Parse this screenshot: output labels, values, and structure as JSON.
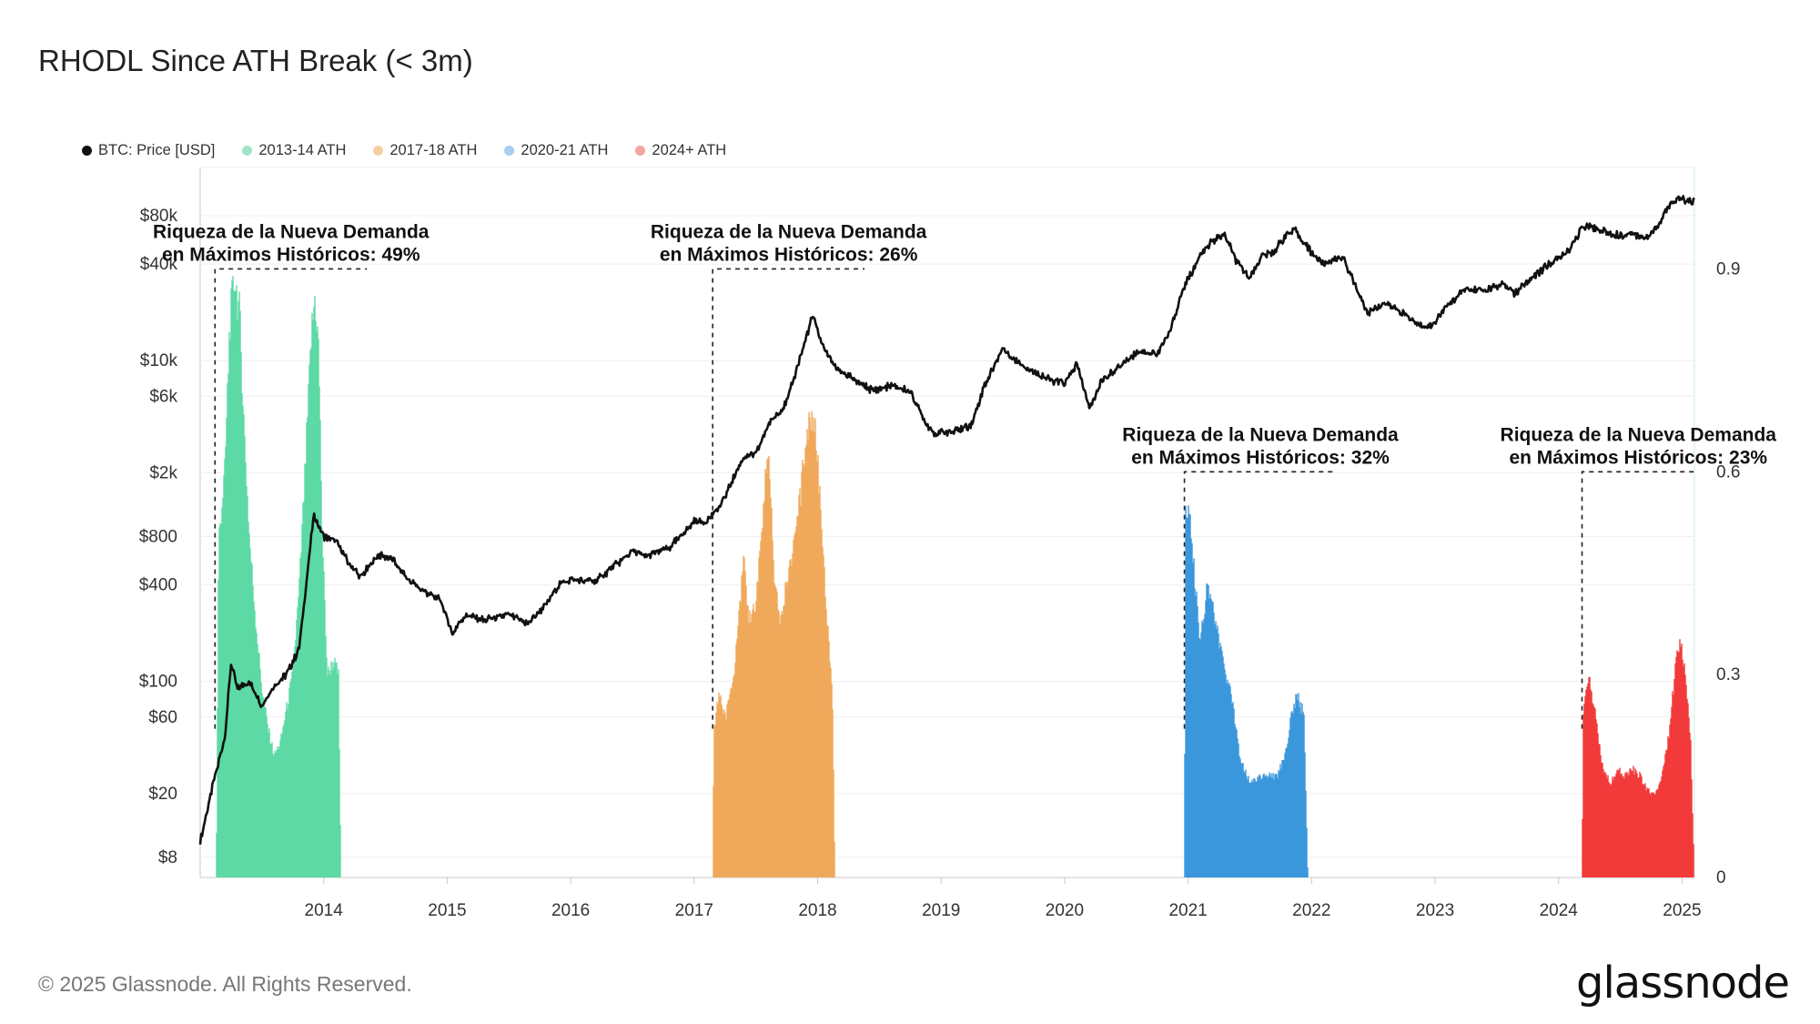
{
  "title": "RHODL Since ATH Break (< 3m)",
  "footer": "© 2025 Glassnode. All Rights Reserved.",
  "brand": "glassnode",
  "legend": [
    {
      "label": "BTC: Price [USD]",
      "color": "#111111"
    },
    {
      "label": "2013-14 ATH",
      "color": "#9fe6c6"
    },
    {
      "label": "2017-18 ATH",
      "color": "#f7cf9e"
    },
    {
      "label": "2020-21 ATH",
      "color": "#a9cdef"
    },
    {
      "label": "2024+ ATH",
      "color": "#f5a3a3"
    }
  ],
  "chart_data": {
    "type": "area",
    "title": "RHODL Since ATH Break (< 3m)",
    "x_ticks": [
      "2014",
      "2015",
      "2016",
      "2017",
      "2018",
      "2019",
      "2020",
      "2021",
      "2022",
      "2023",
      "2024",
      "2025"
    ],
    "x_range": [
      2013.0,
      2025.1
    ],
    "y_left": {
      "scale": "log",
      "range": [
        6,
        160000
      ],
      "ticks": [
        8,
        20,
        60,
        100,
        400,
        800,
        2000,
        6000,
        10000,
        40000,
        80000
      ],
      "tick_labels": [
        "$8",
        "$20",
        "$60",
        "$100",
        "$400",
        "$800",
        "$2k",
        "$6k",
        "$10k",
        "$40k",
        "$80k"
      ]
    },
    "y_right": {
      "range": [
        0,
        1.05
      ],
      "ticks": [
        0,
        0.3,
        0.6,
        0.9
      ],
      "tick_labels": [
        "0",
        "0.3",
        "0.6",
        "0.9"
      ]
    },
    "price_series": {
      "name": "BTC: Price [USD]",
      "color": "#111111",
      "points": [
        [
          2013.0,
          10
        ],
        [
          2013.1,
          22
        ],
        [
          2013.2,
          45
        ],
        [
          2013.25,
          130
        ],
        [
          2013.3,
          90
        ],
        [
          2013.4,
          100
        ],
        [
          2013.5,
          70
        ],
        [
          2013.6,
          95
        ],
        [
          2013.7,
          110
        ],
        [
          2013.8,
          160
        ],
        [
          2013.85,
          350
        ],
        [
          2013.92,
          1100
        ],
        [
          2014.0,
          800
        ],
        [
          2014.1,
          750
        ],
        [
          2014.2,
          550
        ],
        [
          2014.3,
          450
        ],
        [
          2014.45,
          620
        ],
        [
          2014.55,
          580
        ],
        [
          2014.7,
          420
        ],
        [
          2014.85,
          350
        ],
        [
          2014.95,
          320
        ],
        [
          2015.04,
          200
        ],
        [
          2015.15,
          260
        ],
        [
          2015.3,
          240
        ],
        [
          2015.5,
          260
        ],
        [
          2015.65,
          230
        ],
        [
          2015.8,
          300
        ],
        [
          2015.9,
          400
        ],
        [
          2016.0,
          430
        ],
        [
          2016.2,
          420
        ],
        [
          2016.4,
          560
        ],
        [
          2016.5,
          650
        ],
        [
          2016.6,
          600
        ],
        [
          2016.8,
          680
        ],
        [
          2016.95,
          900
        ],
        [
          2017.0,
          1000
        ],
        [
          2017.1,
          1000
        ],
        [
          2017.2,
          1200
        ],
        [
          2017.4,
          2500
        ],
        [
          2017.5,
          2600
        ],
        [
          2017.6,
          4000
        ],
        [
          2017.75,
          5500
        ],
        [
          2017.85,
          10000
        ],
        [
          2017.96,
          19000
        ],
        [
          2018.05,
          12000
        ],
        [
          2018.15,
          9000
        ],
        [
          2018.3,
          7500
        ],
        [
          2018.45,
          6500
        ],
        [
          2018.6,
          7000
        ],
        [
          2018.75,
          6400
        ],
        [
          2018.88,
          4000
        ],
        [
          2018.96,
          3500
        ],
        [
          2019.1,
          3600
        ],
        [
          2019.25,
          4000
        ],
        [
          2019.35,
          7000
        ],
        [
          2019.5,
          12000
        ],
        [
          2019.6,
          10000
        ],
        [
          2019.75,
          8500
        ],
        [
          2019.9,
          7500
        ],
        [
          2020.0,
          7200
        ],
        [
          2020.1,
          9500
        ],
        [
          2020.2,
          5000
        ],
        [
          2020.3,
          7500
        ],
        [
          2020.45,
          9300
        ],
        [
          2020.6,
          11500
        ],
        [
          2020.75,
          11000
        ],
        [
          2020.85,
          15000
        ],
        [
          2020.96,
          28000
        ],
        [
          2021.1,
          45000
        ],
        [
          2021.2,
          56000
        ],
        [
          2021.3,
          60000
        ],
        [
          2021.4,
          40000
        ],
        [
          2021.5,
          33000
        ],
        [
          2021.6,
          45000
        ],
        [
          2021.7,
          48000
        ],
        [
          2021.8,
          62000
        ],
        [
          2021.87,
          65000
        ],
        [
          2022.0,
          47000
        ],
        [
          2022.1,
          40000
        ],
        [
          2022.25,
          45000
        ],
        [
          2022.35,
          30000
        ],
        [
          2022.45,
          20000
        ],
        [
          2022.6,
          23000
        ],
        [
          2022.75,
          19500
        ],
        [
          2022.85,
          17000
        ],
        [
          2022.97,
          16500
        ],
        [
          2023.1,
          22000
        ],
        [
          2023.25,
          28000
        ],
        [
          2023.4,
          27000
        ],
        [
          2023.55,
          30000
        ],
        [
          2023.65,
          26000
        ],
        [
          2023.8,
          34000
        ],
        [
          2023.97,
          42000
        ],
        [
          2024.1,
          50000
        ],
        [
          2024.2,
          70000
        ],
        [
          2024.35,
          65000
        ],
        [
          2024.5,
          60000
        ],
        [
          2024.6,
          62000
        ],
        [
          2024.7,
          58000
        ],
        [
          2024.8,
          68000
        ],
        [
          2024.9,
          95000
        ],
        [
          2025.0,
          102000
        ],
        [
          2025.1,
          97000
        ]
      ]
    },
    "series": [
      {
        "name": "2013-14 ATH",
        "color": "#5cd9a4",
        "start": 2013.13,
        "end": 2014.14,
        "points": [
          [
            2013.13,
            0.0
          ],
          [
            2013.15,
            0.5
          ],
          [
            2013.2,
            0.6
          ],
          [
            2013.24,
            0.82
          ],
          [
            2013.28,
            0.89
          ],
          [
            2013.32,
            0.83
          ],
          [
            2013.36,
            0.65
          ],
          [
            2013.4,
            0.5
          ],
          [
            2013.45,
            0.38
          ],
          [
            2013.5,
            0.28
          ],
          [
            2013.55,
            0.22
          ],
          [
            2013.6,
            0.18
          ],
          [
            2013.65,
            0.2
          ],
          [
            2013.7,
            0.25
          ],
          [
            2013.75,
            0.3
          ],
          [
            2013.8,
            0.42
          ],
          [
            2013.85,
            0.6
          ],
          [
            2013.9,
            0.8
          ],
          [
            2013.93,
            0.86
          ],
          [
            2013.96,
            0.78
          ],
          [
            2013.99,
            0.5
          ],
          [
            2014.03,
            0.3
          ],
          [
            2014.08,
            0.32
          ],
          [
            2014.12,
            0.3
          ],
          [
            2014.14,
            0.0
          ]
        ]
      },
      {
        "name": "2017-18 ATH",
        "color": "#f0a95a",
        "start": 2017.15,
        "end": 2018.14,
        "points": [
          [
            2017.15,
            0.0
          ],
          [
            2017.16,
            0.22
          ],
          [
            2017.2,
            0.27
          ],
          [
            2017.26,
            0.24
          ],
          [
            2017.32,
            0.3
          ],
          [
            2017.4,
            0.47
          ],
          [
            2017.45,
            0.38
          ],
          [
            2017.5,
            0.4
          ],
          [
            2017.56,
            0.55
          ],
          [
            2017.6,
            0.64
          ],
          [
            2017.65,
            0.45
          ],
          [
            2017.7,
            0.38
          ],
          [
            2017.76,
            0.45
          ],
          [
            2017.82,
            0.5
          ],
          [
            2017.87,
            0.58
          ],
          [
            2017.91,
            0.66
          ],
          [
            2017.95,
            0.69
          ],
          [
            2017.99,
            0.65
          ],
          [
            2018.03,
            0.52
          ],
          [
            2018.08,
            0.38
          ],
          [
            2018.12,
            0.28
          ],
          [
            2018.14,
            0.0
          ]
        ]
      },
      {
        "name": "2020-21 ATH",
        "color": "#3b97db",
        "start": 2020.97,
        "end": 2021.97,
        "points": [
          [
            2020.97,
            0.0
          ],
          [
            2020.98,
            0.55
          ],
          [
            2021.02,
            0.53
          ],
          [
            2021.06,
            0.43
          ],
          [
            2021.1,
            0.35
          ],
          [
            2021.16,
            0.44
          ],
          [
            2021.2,
            0.4
          ],
          [
            2021.28,
            0.32
          ],
          [
            2021.36,
            0.26
          ],
          [
            2021.42,
            0.18
          ],
          [
            2021.5,
            0.14
          ],
          [
            2021.58,
            0.15
          ],
          [
            2021.66,
            0.15
          ],
          [
            2021.72,
            0.15
          ],
          [
            2021.78,
            0.18
          ],
          [
            2021.84,
            0.24
          ],
          [
            2021.88,
            0.27
          ],
          [
            2021.94,
            0.24
          ],
          [
            2021.97,
            0.0
          ]
        ]
      },
      {
        "name": "2024+ ATH",
        "color": "#f23a3a",
        "start": 2024.19,
        "end": 2025.1,
        "points": [
          [
            2024.19,
            0.0
          ],
          [
            2024.2,
            0.24
          ],
          [
            2024.24,
            0.3
          ],
          [
            2024.3,
            0.24
          ],
          [
            2024.36,
            0.16
          ],
          [
            2024.42,
            0.14
          ],
          [
            2024.48,
            0.16
          ],
          [
            2024.54,
            0.15
          ],
          [
            2024.6,
            0.16
          ],
          [
            2024.66,
            0.15
          ],
          [
            2024.72,
            0.13
          ],
          [
            2024.78,
            0.12
          ],
          [
            2024.84,
            0.15
          ],
          [
            2024.9,
            0.22
          ],
          [
            2024.95,
            0.32
          ],
          [
            2024.99,
            0.35
          ],
          [
            2025.03,
            0.3
          ],
          [
            2025.07,
            0.2
          ],
          [
            2025.1,
            0.0
          ]
        ]
      }
    ],
    "annotations": [
      {
        "line1": "Riqueza de la Nueva Demanda",
        "line2": "en Máximos Históricos: 49%",
        "x_start": 2013.12,
        "x_end": 2014.35,
        "level": 0.9,
        "drop_to": 0.22
      },
      {
        "line1": "Riqueza de la Nueva Demanda",
        "line2": "en Máximos Históricos: 26%",
        "x_start": 2017.15,
        "x_end": 2018.38,
        "level": 0.9,
        "drop_to": 0.22
      },
      {
        "line1": "Riqueza de la Nueva Demanda",
        "line2": "en Máximos Históricos: 32%",
        "x_start": 2020.97,
        "x_end": 2022.2,
        "level": 0.6,
        "drop_to": 0.22
      },
      {
        "line1": "Riqueza de la Nueva Demanda",
        "line2": "en Máximos Históricos: 23%",
        "x_start": 2024.19,
        "x_end": 2025.1,
        "level": 0.6,
        "drop_to": 0.22
      }
    ],
    "grid": true,
    "legend_position": "top-left"
  }
}
